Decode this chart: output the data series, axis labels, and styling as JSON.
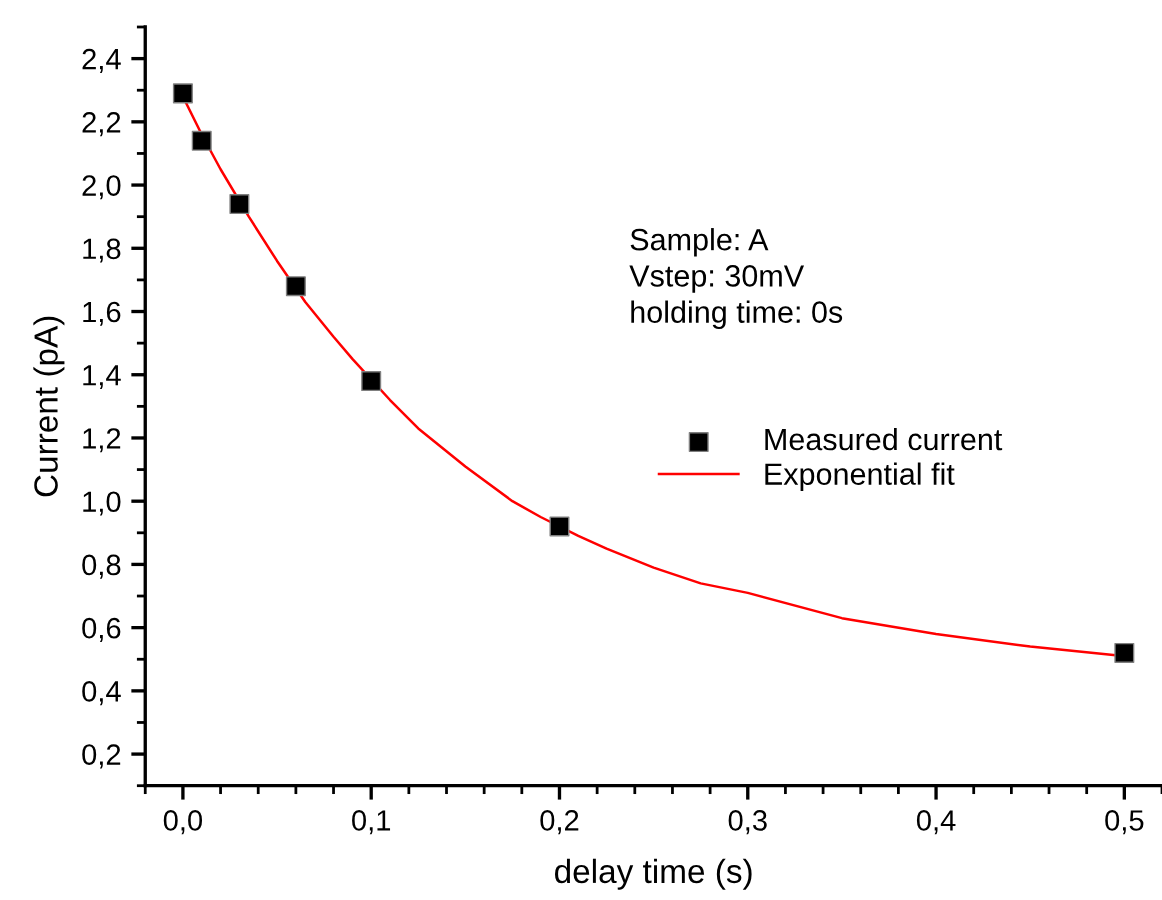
{
  "chart_data": {
    "type": "scatter",
    "xlabel": "delay time (s)",
    "ylabel": "Current (pA)",
    "xlim": [
      -0.02,
      0.52
    ],
    "ylim": [
      0.1,
      2.5
    ],
    "xticks": [
      {
        "value": 0,
        "label": "0,0"
      },
      {
        "value": 0.1,
        "label": "0,1"
      },
      {
        "value": 0.2,
        "label": "0,2"
      },
      {
        "value": 0.3,
        "label": "0,3"
      },
      {
        "value": 0.4,
        "label": "0,4"
      },
      {
        "value": 0.5,
        "label": "0,5"
      }
    ],
    "yticks": [
      {
        "value": 0.2,
        "label": "0,2"
      },
      {
        "value": 0.4,
        "label": "0,4"
      },
      {
        "value": 0.6,
        "label": "0,6"
      },
      {
        "value": 0.8,
        "label": "0,8"
      },
      {
        "value": 1.0,
        "label": "1,0"
      },
      {
        "value": 1.2,
        "label": "1,2"
      },
      {
        "value": 1.4,
        "label": "1,4"
      },
      {
        "value": 1.6,
        "label": "1,6"
      },
      {
        "value": 1.8,
        "label": "1,8"
      },
      {
        "value": 2.0,
        "label": "2,0"
      },
      {
        "value": 2.2,
        "label": "2,2"
      },
      {
        "value": 2.4,
        "label": "2,4"
      }
    ],
    "grid": false,
    "legend": "right",
    "annotations": [
      "Sample: A\nVstep: 30mV\nholding time: 0s"
    ],
    "series": [
      {
        "name": "Measured current",
        "marker": "square",
        "color": "#000000",
        "x": [
          0,
          0.01,
          0.03,
          0.06,
          0.1,
          0.2,
          0.5
        ],
        "values": [
          2.29,
          2.14,
          1.94,
          1.68,
          1.38,
          0.92,
          0.52
        ]
      },
      {
        "name": "Exponential fit",
        "type": "line",
        "marker": "none",
        "line_style": "solid",
        "color": "#ff0000",
        "x": [
          0,
          0.01,
          0.02,
          0.035,
          0.05,
          0.065,
          0.08,
          0.09,
          0.11,
          0.125,
          0.15,
          0.175,
          0.19,
          0.21,
          0.225,
          0.25,
          0.275,
          0.3,
          0.35,
          0.4,
          0.45,
          0.5
        ],
        "values": [
          2.28,
          2.16,
          2.05,
          1.9,
          1.76,
          1.63,
          1.52,
          1.45,
          1.32,
          1.23,
          1.11,
          1.0,
          0.95,
          0.89,
          0.85,
          0.79,
          0.74,
          0.71,
          0.63,
          0.58,
          0.54,
          0.51
        ]
      }
    ]
  }
}
